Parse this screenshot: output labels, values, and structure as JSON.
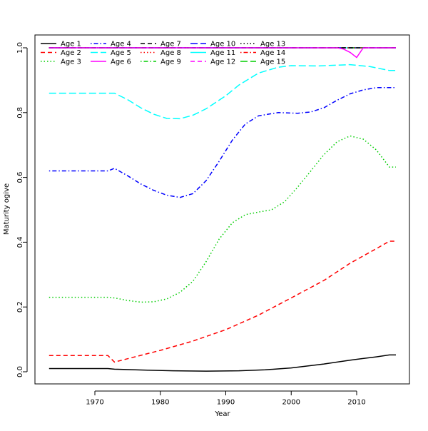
{
  "chart_data": {
    "type": "line",
    "title": "",
    "xlabel": "Year",
    "ylabel": "Maturity ogive",
    "xlim": [
      1963,
      2016
    ],
    "ylim": [
      0,
      1
    ],
    "xticks": [
      1970,
      1980,
      1990,
      2000,
      2010
    ],
    "yticks": [
      "0.0",
      "0.2",
      "0.4",
      "0.6",
      "0.8",
      "1.0"
    ],
    "grid": false,
    "legend_placement": "top-left",
    "series": [
      {
        "name": "Age 1",
        "color": "#000000",
        "lty": "solid",
        "points": [
          [
            1963,
            0.01
          ],
          [
            1972,
            0.01
          ],
          [
            1973,
            0.008
          ],
          [
            1978,
            0.005
          ],
          [
            1982,
            0.003
          ],
          [
            1987,
            0.002
          ],
          [
            1992,
            0.003
          ],
          [
            1996,
            0.006
          ],
          [
            2000,
            0.012
          ],
          [
            2005,
            0.024
          ],
          [
            2009,
            0.036
          ],
          [
            2013,
            0.046
          ],
          [
            2015,
            0.052
          ],
          [
            2016,
            0.052
          ]
        ]
      },
      {
        "name": "Age 2",
        "color": "#FF0000",
        "lty": "dashed",
        "points": [
          [
            1963,
            0.05
          ],
          [
            1972,
            0.05
          ],
          [
            1973,
            0.03
          ],
          [
            1980,
            0.066
          ],
          [
            1985,
            0.095
          ],
          [
            1990,
            0.13
          ],
          [
            1995,
            0.175
          ],
          [
            2000,
            0.228
          ],
          [
            2005,
            0.282
          ],
          [
            2009,
            0.335
          ],
          [
            2013,
            0.38
          ],
          [
            2015,
            0.403
          ],
          [
            2016,
            0.403
          ]
        ]
      },
      {
        "name": "Age 3",
        "color": "#00CD00",
        "lty": "dotted",
        "points": [
          [
            1963,
            0.23
          ],
          [
            1972,
            0.23
          ],
          [
            1973,
            0.228
          ],
          [
            1975,
            0.22
          ],
          [
            1977,
            0.215
          ],
          [
            1979,
            0.216
          ],
          [
            1981,
            0.225
          ],
          [
            1983,
            0.245
          ],
          [
            1985,
            0.28
          ],
          [
            1987,
            0.34
          ],
          [
            1989,
            0.41
          ],
          [
            1991,
            0.46
          ],
          [
            1993,
            0.485
          ],
          [
            1995,
            0.493
          ],
          [
            1997,
            0.5
          ],
          [
            1999,
            0.525
          ],
          [
            2001,
            0.57
          ],
          [
            2003,
            0.62
          ],
          [
            2005,
            0.67
          ],
          [
            2007,
            0.71
          ],
          [
            2009,
            0.728
          ],
          [
            2011,
            0.718
          ],
          [
            2013,
            0.685
          ],
          [
            2015,
            0.632
          ],
          [
            2016,
            0.632
          ]
        ]
      },
      {
        "name": "Age 4",
        "color": "#0000FF",
        "lty": "dotdash",
        "points": [
          [
            1963,
            0.62
          ],
          [
            1972,
            0.62
          ],
          [
            1973,
            0.628
          ],
          [
            1975,
            0.605
          ],
          [
            1977,
            0.58
          ],
          [
            1979,
            0.56
          ],
          [
            1981,
            0.545
          ],
          [
            1983,
            0.538
          ],
          [
            1985,
            0.55
          ],
          [
            1987,
            0.59
          ],
          [
            1989,
            0.65
          ],
          [
            1991,
            0.715
          ],
          [
            1993,
            0.765
          ],
          [
            1995,
            0.79
          ],
          [
            1998,
            0.8
          ],
          [
            2001,
            0.798
          ],
          [
            2003,
            0.802
          ],
          [
            2005,
            0.815
          ],
          [
            2007,
            0.838
          ],
          [
            2009,
            0.858
          ],
          [
            2011,
            0.87
          ],
          [
            2013,
            0.877
          ],
          [
            2016,
            0.877
          ]
        ]
      },
      {
        "name": "Age 5",
        "color": "#00FFFF",
        "lty": "longdash",
        "points": [
          [
            1963,
            0.86
          ],
          [
            1973,
            0.86
          ],
          [
            1975,
            0.84
          ],
          [
            1977,
            0.815
          ],
          [
            1979,
            0.795
          ],
          [
            1981,
            0.782
          ],
          [
            1983,
            0.781
          ],
          [
            1985,
            0.792
          ],
          [
            1987,
            0.812
          ],
          [
            1990,
            0.852
          ],
          [
            1992,
            0.885
          ],
          [
            1995,
            0.922
          ],
          [
            1998,
            0.94
          ],
          [
            2000,
            0.945
          ],
          [
            2004,
            0.944
          ],
          [
            2009,
            0.948
          ],
          [
            2012,
            0.942
          ],
          [
            2015,
            0.93
          ],
          [
            2016,
            0.93
          ]
        ]
      },
      {
        "name": "Age 6",
        "color": "#FF00FF",
        "lty": "solid",
        "points": [
          [
            1963,
            1
          ],
          [
            2007,
            1
          ],
          [
            2008,
            0.996
          ],
          [
            2009,
            0.986
          ],
          [
            2010,
            0.97
          ],
          [
            2011,
            1
          ],
          [
            2016,
            1
          ]
        ]
      },
      {
        "name": "Age 7",
        "color": "#000000",
        "lty": "dashed",
        "points": [
          [
            1963,
            1
          ],
          [
            2016,
            1
          ]
        ]
      },
      {
        "name": "Age 8",
        "color": "#FF0000",
        "lty": "dotted",
        "points": [
          [
            1963,
            1
          ],
          [
            2016,
            1
          ]
        ]
      },
      {
        "name": "Age 9",
        "color": "#00CD00",
        "lty": "dotdash",
        "points": [
          [
            1963,
            1
          ],
          [
            2016,
            1
          ]
        ]
      },
      {
        "name": "Age 10",
        "color": "#0000FF",
        "lty": "longdash",
        "points": [
          [
            1963,
            1
          ],
          [
            2016,
            1
          ]
        ]
      },
      {
        "name": "Age 11",
        "color": "#00FFFF",
        "lty": "solid",
        "points": [
          [
            1963,
            1
          ],
          [
            2016,
            1
          ]
        ]
      },
      {
        "name": "Age 12",
        "color": "#FF00FF",
        "lty": "dashed",
        "points": [
          [
            1963,
            1
          ],
          [
            2016,
            1
          ]
        ]
      },
      {
        "name": "Age 13",
        "color": "#000000",
        "lty": "dotted",
        "points": [
          [
            1963,
            1
          ],
          [
            2016,
            1
          ]
        ]
      },
      {
        "name": "Age 14",
        "color": "#FF0000",
        "lty": "dotdash",
        "points": [
          [
            1963,
            1
          ],
          [
            2016,
            1
          ]
        ]
      },
      {
        "name": "Age 15",
        "color": "#00CD00",
        "lty": "longdash",
        "points": [
          [
            1963,
            1
          ],
          [
            2016,
            1
          ]
        ]
      }
    ]
  }
}
